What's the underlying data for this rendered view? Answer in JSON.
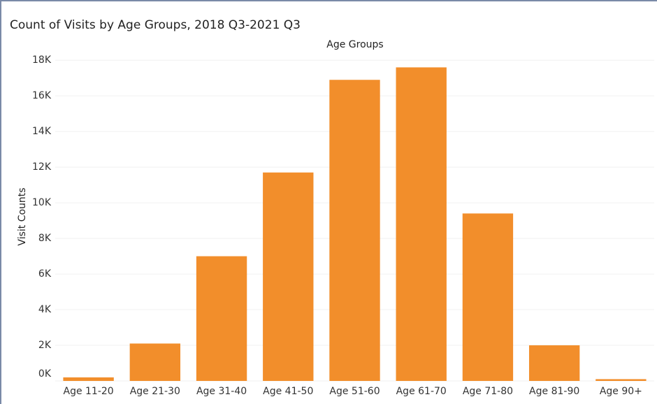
{
  "chart_data": {
    "type": "bar",
    "title": "Count of Visits by Age Groups, 2018 Q3-2021 Q3",
    "x_axis_title": "Age Groups",
    "y_axis_title": "Visit Counts",
    "categories": [
      "Age 11-20",
      "Age 21-30",
      "Age 31-40",
      "Age 41-50",
      "Age 51-60",
      "Age 61-70",
      "Age 71-80",
      "Age 81-90",
      "Age 90+"
    ],
    "values": [
      200,
      2100,
      7000,
      11700,
      16900,
      17600,
      9400,
      2000,
      100
    ],
    "color": "#f28e2b",
    "ylim": [
      0,
      18400
    ],
    "yticks": [
      {
        "value": 0,
        "label": "0K"
      },
      {
        "value": 2000,
        "label": "2K"
      },
      {
        "value": 4000,
        "label": "4K"
      },
      {
        "value": 6000,
        "label": "6K"
      },
      {
        "value": 8000,
        "label": "8K"
      },
      {
        "value": 10000,
        "label": "10K"
      },
      {
        "value": 12000,
        "label": "12K"
      },
      {
        "value": 14000,
        "label": "14K"
      },
      {
        "value": 16000,
        "label": "16K"
      },
      {
        "value": 18000,
        "label": "18K"
      }
    ],
    "grid": true
  }
}
